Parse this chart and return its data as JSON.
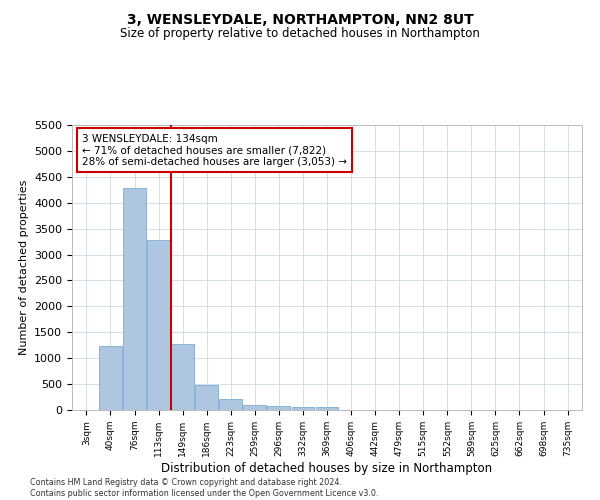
{
  "title": "3, WENSLEYDALE, NORTHAMPTON, NN2 8UT",
  "subtitle": "Size of property relative to detached houses in Northampton",
  "xlabel": "Distribution of detached houses by size in Northampton",
  "ylabel": "Number of detached properties",
  "categories": [
    "3sqm",
    "40sqm",
    "76sqm",
    "113sqm",
    "149sqm",
    "186sqm",
    "223sqm",
    "259sqm",
    "296sqm",
    "332sqm",
    "369sqm",
    "406sqm",
    "442sqm",
    "479sqm",
    "515sqm",
    "552sqm",
    "589sqm",
    "625sqm",
    "662sqm",
    "698sqm",
    "735sqm"
  ],
  "bar_values": [
    0,
    1230,
    4280,
    3280,
    1280,
    480,
    215,
    100,
    80,
    55,
    55,
    0,
    0,
    0,
    0,
    0,
    0,
    0,
    0,
    0,
    0
  ],
  "bar_color": "#aec6df",
  "bar_edgecolor": "#7aadd4",
  "vline_x_index": 3.5,
  "vline_color": "#cc0000",
  "annotation_text": "3 WENSLEYDALE: 134sqm\n← 71% of detached houses are smaller (7,822)\n28% of semi-detached houses are larger (3,053) →",
  "annotation_box_color": "#cc0000",
  "ylim": [
    0,
    5500
  ],
  "yticks": [
    0,
    500,
    1000,
    1500,
    2000,
    2500,
    3000,
    3500,
    4000,
    4500,
    5000,
    5500
  ],
  "background_color": "#ffffff",
  "grid_color": "#cdd8e8",
  "footer": "Contains HM Land Registry data © Crown copyright and database right 2024.\nContains public sector information licensed under the Open Government Licence v3.0."
}
